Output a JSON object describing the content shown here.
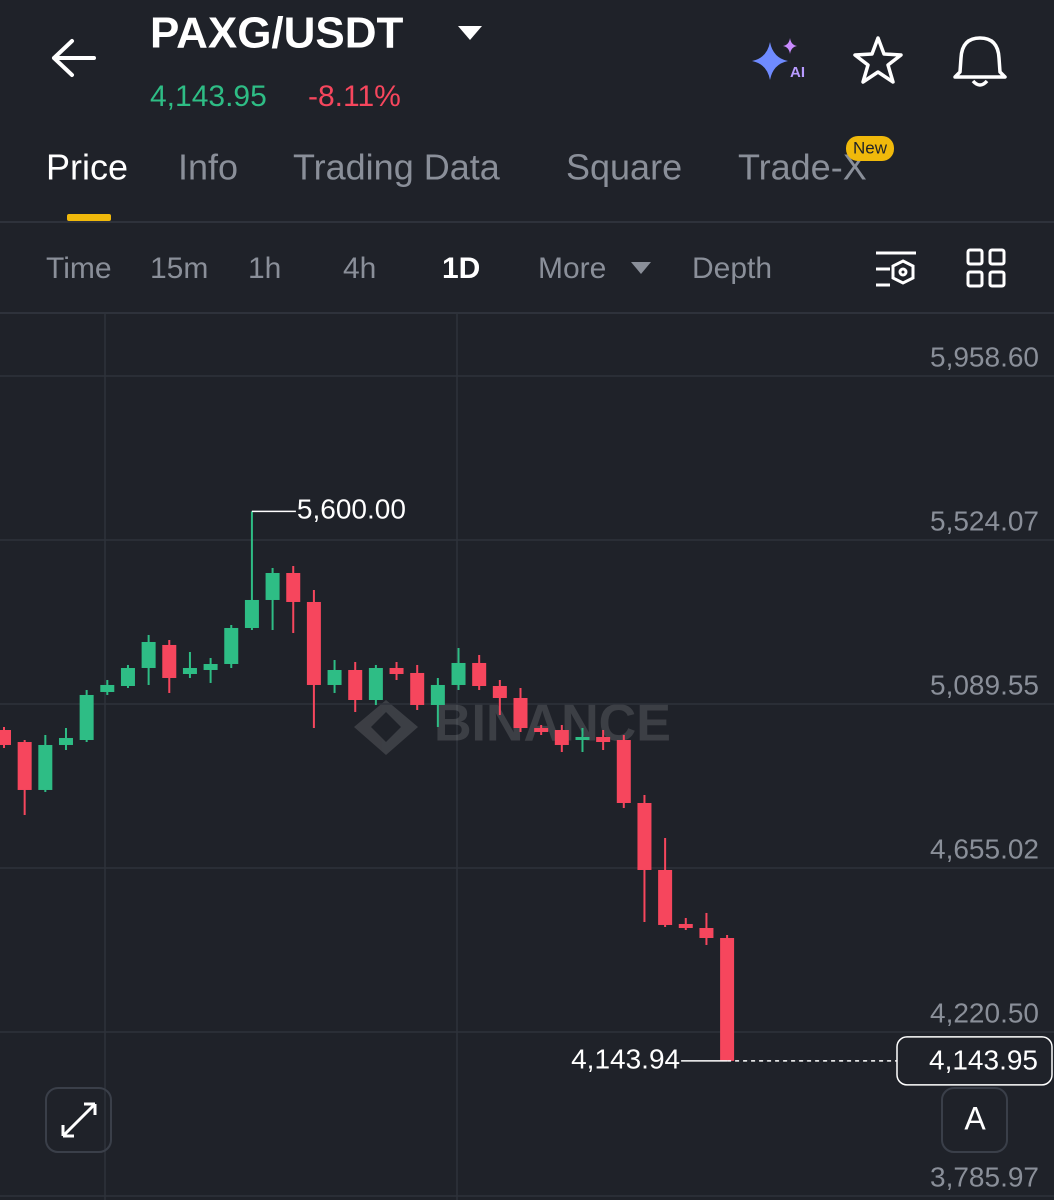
{
  "header": {
    "pair": "PAXG/USDT",
    "price": "4,143.95",
    "change": "-8.11%",
    "ai_badge": "AI"
  },
  "tabs": {
    "items": [
      "Price",
      "Info",
      "Trading Data",
      "Square",
      "Trade-X"
    ],
    "new_badge": "New"
  },
  "intervals": {
    "items": [
      "Time",
      "15m",
      "1h",
      "4h",
      "1D",
      "More",
      "Depth"
    ]
  },
  "chart_data": {
    "type": "candlestick",
    "watermark": "BINANCE",
    "up_color": "#2ebd85",
    "down_color": "#f6465d",
    "ylim": [
      3775.3,
      6125.5
    ],
    "yticks": [
      {
        "value": 5958.6,
        "label": "5,958.60"
      },
      {
        "value": 5524.07,
        "label": "5,524.07"
      },
      {
        "value": 5089.55,
        "label": "5,089.55"
      },
      {
        "value": 4655.02,
        "label": "4,655.02"
      },
      {
        "value": 4220.5,
        "label": "4,220.50"
      },
      {
        "value": 3785.97,
        "label": "3,785.97"
      }
    ],
    "grid": true,
    "open": [
      5020.6,
      4988.8,
      4861.7,
      4980.9,
      4994.1,
      5121.3,
      5137.2,
      5184.9,
      5245.9,
      5169.0,
      5179.6,
      5195.5,
      5290.9,
      5365.1,
      5436.6,
      5359.8,
      5139.9,
      5179.6,
      5100.1,
      5184.9,
      5171.7,
      5086.9,
      5139.9,
      5198.2,
      5137.2,
      5105.4,
      5025.9,
      5020.6,
      4994.1,
      5002.1,
      4994.1,
      4827.2,
      4649.7,
      4506.6,
      4496.0,
      4469.5
    ],
    "high": [
      5028.6,
      4994.1,
      5007.4,
      5025.9,
      5126.6,
      5153.1,
      5192.9,
      5272.4,
      5259.1,
      5227.3,
      5211.4,
      5298.8,
      5600,
      5449.9,
      5455.2,
      5391.6,
      5206.1,
      5200.8,
      5192.9,
      5200.8,
      5192.9,
      5158.4,
      5237.9,
      5219.4,
      5153.1,
      5131.9,
      5033.9,
      5033.9,
      5025.9,
      5020.6,
      5007.4,
      4848.4,
      4734.5,
      4522.5,
      4535.8,
      4477.5
    ],
    "low": [
      4972.9,
      4795.4,
      4856.4,
      4967.6,
      4988.8,
      5113.4,
      5131.9,
      5139.9,
      5118.7,
      5158.4,
      5145.2,
      5184.9,
      5285.6,
      5285.6,
      5277.6,
      5025.9,
      5118.7,
      5068.3,
      5086.9,
      5153.1,
      5073.6,
      5028.6,
      5126.6,
      5126.6,
      5060.4,
      5015.3,
      5007.4,
      4962.3,
      4962.3,
      4967.6,
      4814.0,
      4511.9,
      4498.7,
      4490.7,
      4451.0,
      4143.94
    ],
    "close": [
      4980.9,
      4861.7,
      4980.9,
      4999.4,
      5113.4,
      5139.9,
      5184.9,
      5253.8,
      5158.4,
      5184.9,
      5195.5,
      5290.9,
      5365.1,
      5436.6,
      5359.8,
      5139.9,
      5179.6,
      5100.1,
      5184.9,
      5169.0,
      5086.9,
      5139.9,
      5198.2,
      5137.2,
      5105.4,
      5025.9,
      5015.3,
      4980.9,
      5002.1,
      4988.8,
      4827.2,
      4649.7,
      4504.0,
      4496.0,
      4469.5,
      4143.95
    ],
    "high_label": {
      "value": 5600,
      "label": "5,600.00"
    },
    "low_label": {
      "value": 4143.94,
      "label": "4,143.94"
    },
    "last_price": {
      "value": 4143.95,
      "label": "4,143.95"
    },
    "scale_button": "A"
  }
}
